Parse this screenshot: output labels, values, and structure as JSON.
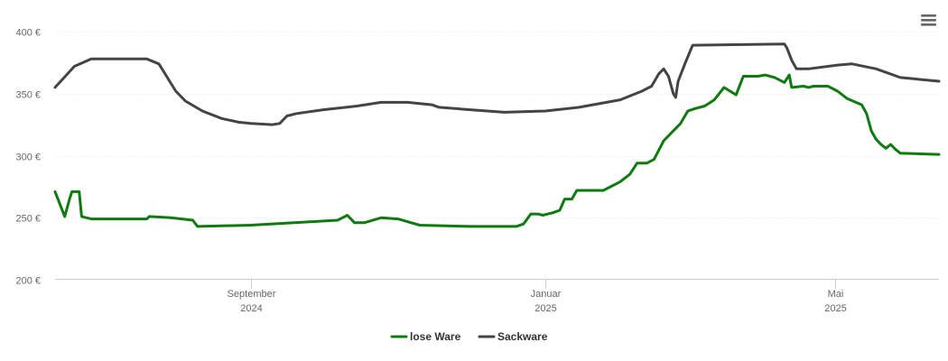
{
  "chart_data": {
    "type": "line",
    "y_axis": {
      "min": 200,
      "max": 400,
      "ticks": [
        {
          "value": 200,
          "label": "200 €"
        },
        {
          "value": 250,
          "label": "250 €"
        },
        {
          "value": 300,
          "label": "300 €"
        },
        {
          "value": 350,
          "label": "350 €"
        },
        {
          "value": 400,
          "label": "400 €"
        }
      ]
    },
    "x_axis": {
      "min": "2024-06-12",
      "max": "2025-06-13",
      "ticks": [
        {
          "date": "2024-09-01",
          "month": "September",
          "year": "2024"
        },
        {
          "date": "2025-01-01",
          "month": "Januar",
          "year": "2025"
        },
        {
          "date": "2025-05-01",
          "month": "Mai",
          "year": "2025"
        }
      ]
    },
    "grid": true,
    "legend": "bottom-center",
    "series": [
      {
        "name": "lose Ware",
        "color": "#0f7a0f",
        "points": [
          [
            "2024-06-12",
            271
          ],
          [
            "2024-06-16",
            251
          ],
          [
            "2024-06-18",
            265
          ],
          [
            "2024-06-19",
            271
          ],
          [
            "2024-06-22",
            271
          ],
          [
            "2024-06-23",
            251
          ],
          [
            "2024-06-27",
            249
          ],
          [
            "2024-07-20",
            249
          ],
          [
            "2024-07-21",
            251
          ],
          [
            "2024-07-30",
            250
          ],
          [
            "2024-08-08",
            248
          ],
          [
            "2024-08-10",
            243
          ],
          [
            "2024-09-01",
            244
          ],
          [
            "2024-10-07",
            248
          ],
          [
            "2024-10-11",
            252
          ],
          [
            "2024-10-14",
            246
          ],
          [
            "2024-10-18",
            246
          ],
          [
            "2024-10-25",
            250
          ],
          [
            "2024-11-01",
            249
          ],
          [
            "2024-11-10",
            244
          ],
          [
            "2024-12-01",
            243
          ],
          [
            "2024-12-20",
            243
          ],
          [
            "2024-12-23",
            245
          ],
          [
            "2024-12-26",
            253
          ],
          [
            "2024-12-29",
            253
          ],
          [
            "2024-12-31",
            252
          ],
          [
            "2025-01-02",
            253
          ],
          [
            "2025-01-04",
            254
          ],
          [
            "2025-01-07",
            256
          ],
          [
            "2025-01-09",
            265
          ],
          [
            "2025-01-12",
            265
          ],
          [
            "2025-01-14",
            272
          ],
          [
            "2025-01-25",
            272
          ],
          [
            "2025-02-01",
            279
          ],
          [
            "2025-02-05",
            285
          ],
          [
            "2025-02-08",
            294
          ],
          [
            "2025-02-12",
            294
          ],
          [
            "2025-02-15",
            297
          ],
          [
            "2025-02-19",
            312
          ],
          [
            "2025-02-24",
            322
          ],
          [
            "2025-02-26",
            326
          ],
          [
            "2025-03-01",
            336
          ],
          [
            "2025-03-04",
            338
          ],
          [
            "2025-03-08",
            340
          ],
          [
            "2025-03-12",
            345
          ],
          [
            "2025-03-16",
            355
          ],
          [
            "2025-03-21",
            349
          ],
          [
            "2025-03-24",
            364
          ],
          [
            "2025-03-30",
            364
          ],
          [
            "2025-04-02",
            365
          ],
          [
            "2025-04-06",
            363
          ],
          [
            "2025-04-10",
            359
          ],
          [
            "2025-04-12",
            365
          ],
          [
            "2025-04-13",
            355
          ],
          [
            "2025-04-18",
            356
          ],
          [
            "2025-04-20",
            355
          ],
          [
            "2025-04-22",
            356
          ],
          [
            "2025-04-28",
            356
          ],
          [
            "2025-05-02",
            352
          ],
          [
            "2025-05-06",
            346
          ],
          [
            "2025-05-12",
            341
          ],
          [
            "2025-05-14",
            334
          ],
          [
            "2025-05-16",
            320
          ],
          [
            "2025-05-18",
            313
          ],
          [
            "2025-05-20",
            309
          ],
          [
            "2025-05-22",
            306
          ],
          [
            "2025-05-24",
            309
          ],
          [
            "2025-05-26",
            305
          ],
          [
            "2025-05-28",
            302
          ],
          [
            "2025-06-13",
            301
          ]
        ]
      },
      {
        "name": "Sackware",
        "color": "#444444",
        "points": [
          [
            "2024-06-12",
            355
          ],
          [
            "2024-06-20",
            372
          ],
          [
            "2024-06-27",
            378
          ],
          [
            "2024-07-20",
            378
          ],
          [
            "2024-07-25",
            374
          ],
          [
            "2024-08-01",
            352
          ],
          [
            "2024-08-05",
            344
          ],
          [
            "2024-08-12",
            336
          ],
          [
            "2024-08-20",
            330
          ],
          [
            "2024-08-27",
            327
          ],
          [
            "2024-09-01",
            326
          ],
          [
            "2024-09-10",
            325
          ],
          [
            "2024-09-13",
            326
          ],
          [
            "2024-09-16",
            332
          ],
          [
            "2024-09-20",
            334
          ],
          [
            "2024-10-01",
            337
          ],
          [
            "2024-10-15",
            340
          ],
          [
            "2024-10-25",
            343
          ],
          [
            "2024-11-05",
            343
          ],
          [
            "2024-11-15",
            341
          ],
          [
            "2024-11-18",
            339
          ],
          [
            "2024-12-01",
            337
          ],
          [
            "2024-12-15",
            335
          ],
          [
            "2025-01-01",
            336
          ],
          [
            "2025-01-15",
            339
          ],
          [
            "2025-02-01",
            345
          ],
          [
            "2025-02-10",
            352
          ],
          [
            "2025-02-14",
            356
          ],
          [
            "2025-02-17",
            366
          ],
          [
            "2025-02-19",
            370
          ],
          [
            "2025-02-21",
            364
          ],
          [
            "2025-02-23",
            350
          ],
          [
            "2025-02-24",
            347
          ],
          [
            "2025-02-25",
            360
          ],
          [
            "2025-02-28",
            375
          ],
          [
            "2025-03-03",
            389
          ],
          [
            "2025-04-10",
            390
          ],
          [
            "2025-04-11",
            387
          ],
          [
            "2025-04-13",
            377
          ],
          [
            "2025-04-15",
            370
          ],
          [
            "2025-04-20",
            370
          ],
          [
            "2025-05-02",
            373
          ],
          [
            "2025-05-08",
            374
          ],
          [
            "2025-05-18",
            370
          ],
          [
            "2025-05-28",
            363
          ],
          [
            "2025-06-13",
            360
          ]
        ]
      }
    ]
  },
  "legend": {
    "items": [
      "lose Ware",
      "Sackware"
    ]
  },
  "menu": {
    "icon": "hamburger-menu-icon"
  }
}
